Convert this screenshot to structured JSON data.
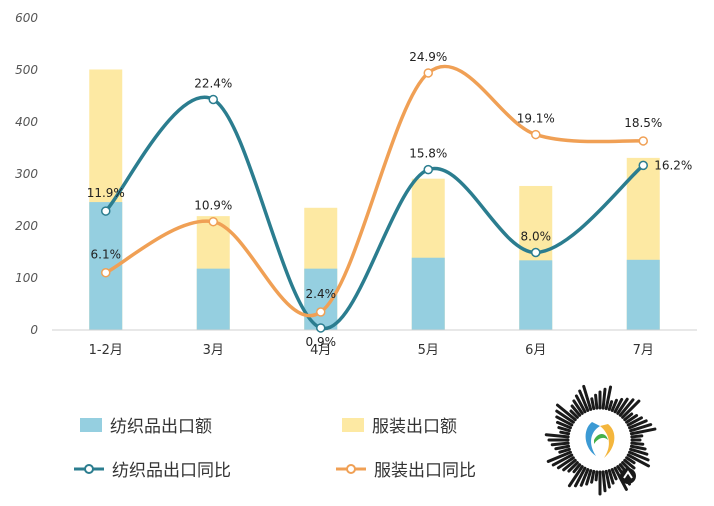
{
  "chart_data": {
    "type": "bar",
    "categories": [
      "1-2月",
      "3月",
      "4月",
      "5月",
      "6月",
      "7月"
    ],
    "ylim": [
      0,
      600
    ],
    "yticks": [
      0,
      100,
      200,
      300,
      400,
      500,
      600
    ],
    "bar_mode": "overlay",
    "series": [
      {
        "name": "纺织品出口额",
        "kind": "bar",
        "color": "#95cfe0",
        "values": [
          246,
          118,
          118,
          139,
          134,
          135
        ]
      },
      {
        "name": "服装出口额",
        "kind": "bar",
        "color": "#fde9a3",
        "values": [
          501,
          219,
          235,
          291,
          277,
          331
        ]
      },
      {
        "name": "纺织品出口同比",
        "kind": "line",
        "color": "#2b7d8f",
        "values": [
          11.9,
          22.4,
          0.9,
          15.8,
          8.0,
          16.2
        ],
        "labels": [
          "11.9%",
          "22.4%",
          "0.9%",
          "15.8%",
          "8.0%",
          "16.2%"
        ]
      },
      {
        "name": "服装出口同比",
        "kind": "line",
        "color": "#f0a055",
        "values": [
          6.1,
          10.9,
          2.4,
          24.9,
          19.1,
          18.5
        ],
        "labels": [
          "6.1%",
          "10.9%",
          "2.4%",
          "24.9%",
          "19.1%",
          "18.5%"
        ]
      }
    ],
    "grid": false,
    "legend_position": "bottom-left"
  },
  "legend": {
    "textile_amount": "纺织品出口额",
    "apparel_amount": "服装出口额",
    "textile_yoy": "纺织品出口同比",
    "apparel_yoy": "服装出口同比"
  },
  "qr_code": {
    "icon": "mini-program-code-icon"
  }
}
